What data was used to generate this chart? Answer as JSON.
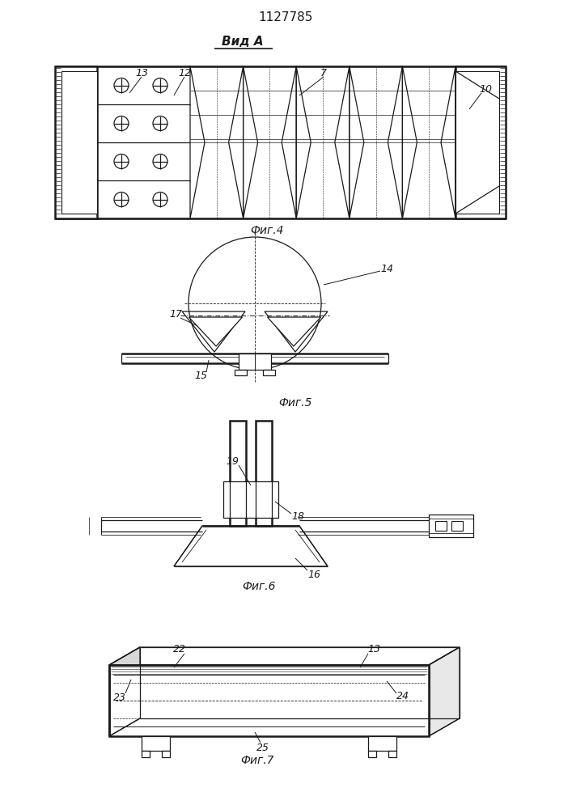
{
  "title": "1127785",
  "vid_a_label": "Вид А",
  "fig4_label": "Фиг.4",
  "fig5_label": "Фиг.5",
  "fig6_label": "Фиг.6",
  "fig7_label": "Фиг.7",
  "bg_color": "#ffffff",
  "line_color": "#1a1a1a",
  "lw": 0.9,
  "hlw": 1.8
}
